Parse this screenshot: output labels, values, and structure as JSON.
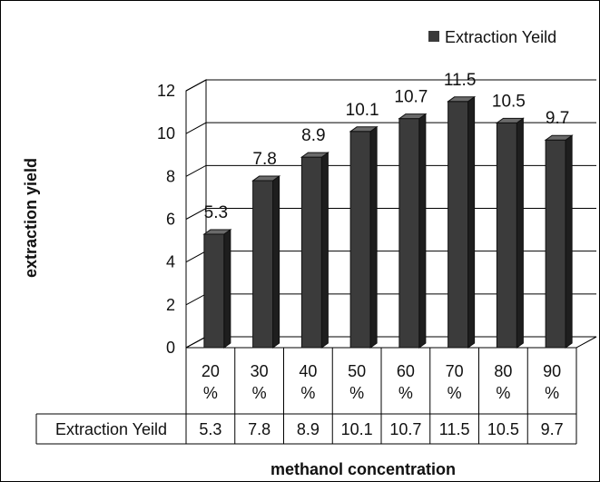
{
  "chart_data": {
    "type": "bar",
    "style": "3d-column",
    "categories": [
      "20 %",
      "30 %",
      "40 %",
      "50 %",
      "60 %",
      "70 %",
      "80 %",
      "90 %"
    ],
    "series": [
      {
        "name": "Extraction Yeild",
        "values": [
          5.3,
          7.8,
          8.9,
          10.1,
          10.7,
          11.5,
          10.5,
          9.7
        ],
        "color": "#3a3a3a"
      }
    ],
    "data_labels": [
      "5.3",
      "7.8",
      "8.9",
      "10.1",
      "10.7",
      "11.5",
      "10.5",
      "9.7"
    ],
    "xlabel": "methanol concentration",
    "ylabel": "extraction yield",
    "ylim": [
      0,
      12
    ],
    "yticks": [
      0,
      2,
      4,
      6,
      8,
      10,
      12
    ],
    "grid": true,
    "legend_position": "top-right",
    "data_table": {
      "row_label": "Extraction Yeild",
      "values": [
        "5.3",
        "7.8",
        "8.9",
        "10.1",
        "10.7",
        "11.5",
        "10.5",
        "9.7"
      ]
    }
  }
}
